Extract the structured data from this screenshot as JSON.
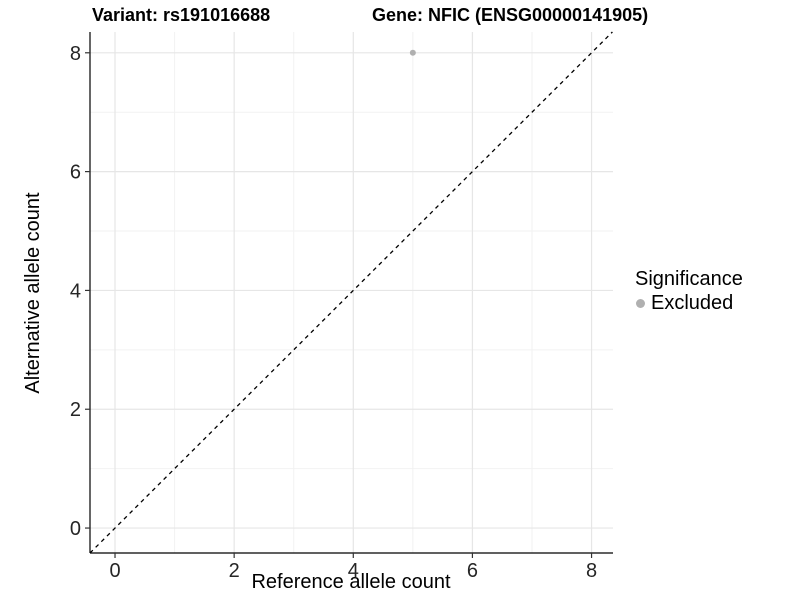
{
  "chart_data": {
    "type": "scatter",
    "title_left": "Variant: rs191016688",
    "title_right": "Gene: NFIC (ENSG00000141905)",
    "xlabel": "Reference allele count",
    "ylabel": "Alternative allele count",
    "xlim": [
      -0.42,
      8.36
    ],
    "ylim": [
      -0.42,
      8.35
    ],
    "xticks": [
      0,
      2,
      4,
      6,
      8
    ],
    "yticks": [
      0,
      2,
      4,
      6,
      8
    ],
    "xminor": [
      1,
      3,
      5,
      7
    ],
    "yminor": [
      1,
      3,
      5,
      7
    ],
    "grid": "major+minor",
    "reference_line": {
      "type": "identity",
      "style": "dashed",
      "color": "#000000"
    },
    "series": [
      {
        "name": "Excluded",
        "color": "#b0b0b0",
        "points": [
          {
            "x": 5,
            "y": 8
          }
        ]
      }
    ],
    "legend": {
      "title": "Significance",
      "position": "right",
      "entries": [
        {
          "label": "Excluded",
          "color": "#b0b0b0",
          "marker": "circle"
        }
      ]
    }
  },
  "colors": {
    "background": "#ffffff",
    "grid_major": "#e6e6e6",
    "grid_minor": "#f2f2f2",
    "axis_line": "#000000",
    "tick_mark": "#333333",
    "tick_text": "#262626"
  }
}
